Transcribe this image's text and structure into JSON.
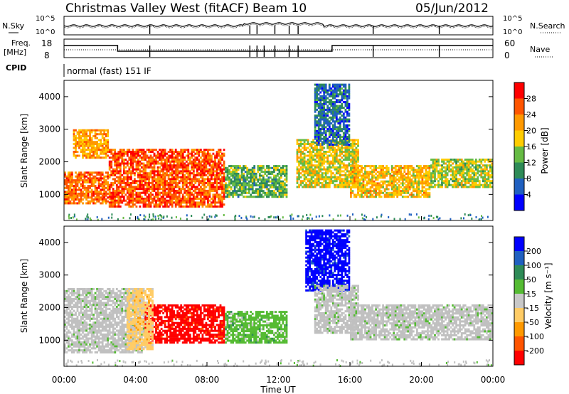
{
  "header": {
    "station": "Christmas Valley West (fitACF)",
    "beam": "Beam 10",
    "date": "05/Jun/2012"
  },
  "noise_panel": {
    "left_label": "N.Sky",
    "right_label": "N.Search",
    "left_ticks": [
      "10^5",
      "10^0"
    ],
    "right_ticks": [
      "10^5",
      "10^0"
    ]
  },
  "freq_panel": {
    "left_label_1": "Freq.",
    "left_label_2": "[MHz]",
    "right_label": "Nave",
    "left_ticks": [
      "18",
      "8"
    ],
    "right_ticks": [
      "60",
      "0"
    ]
  },
  "cpid": {
    "label": "CPID",
    "value": "normal (fast) 151 IF"
  },
  "colors": {
    "power_scale": [
      "#0000ff",
      "#2060c0",
      "#2e8b57",
      "#66bb44",
      "#ffcc00",
      "#ff9900",
      "#ff5500",
      "#ff0000"
    ],
    "velocity_scale": [
      "#ff0000",
      "#ff5500",
      "#ff9900",
      "#ffcc66",
      "#c8c8c8",
      "#55bb33",
      "#2e8b57",
      "#2060c0",
      "#0000ff"
    ],
    "ground_scatter": "#c0c0c0"
  },
  "chart_data": [
    {
      "type": "heatmap",
      "title": "Power",
      "ylabel": "Slant Range [km]",
      "yticks": [
        "1000",
        "2000",
        "3000",
        "4000"
      ],
      "ylim": [
        200,
        4500
      ],
      "colorbar_label": "Power [dB]",
      "colorbar_ticks": [
        "4",
        "8",
        "12",
        "16",
        "20",
        "24",
        "28"
      ],
      "scatter_regions": [
        {
          "t0": 0.0,
          "t1": 2.5,
          "r0": 700,
          "r1": 1700,
          "dB": 26
        },
        {
          "t0": 2.5,
          "t1": 9.0,
          "r0": 600,
          "r1": 2400,
          "dB": 28
        },
        {
          "t0": 0.5,
          "t1": 2.5,
          "r0": 2100,
          "r1": 3000,
          "dB": 22
        },
        {
          "t0": 9.0,
          "t1": 12.5,
          "r0": 900,
          "r1": 1900,
          "dB": 12
        },
        {
          "t0": 13.0,
          "t1": 16.5,
          "r0": 1200,
          "r1": 2700,
          "dB": 18
        },
        {
          "t0": 14.0,
          "t1": 16.0,
          "r0": 2500,
          "r1": 4400,
          "dB": 6
        },
        {
          "t0": 16.0,
          "t1": 20.5,
          "r0": 900,
          "r1": 1900,
          "dB": 20
        },
        {
          "t0": 20.5,
          "t1": 24.0,
          "r0": 1200,
          "r1": 2100,
          "dB": 16
        }
      ]
    },
    {
      "type": "heatmap",
      "title": "Velocity",
      "ylabel": "Slant Range [km]",
      "yticks": [
        "1000",
        "2000",
        "3000",
        "4000"
      ],
      "ylim": [
        200,
        4500
      ],
      "colorbar_label": "Velocity [m s⁻¹]",
      "colorbar_ticks": [
        "200",
        "100",
        "50",
        "15",
        "-15",
        "-50",
        "-100",
        "-200"
      ],
      "xlabel": "Time UT",
      "xticks": [
        "00:00",
        "04:00",
        "08:00",
        "12:00",
        "16:00",
        "20:00",
        "00:00"
      ],
      "xlim": [
        0,
        24
      ],
      "scatter_regions": [
        {
          "t0": 0.0,
          "t1": 4.5,
          "r0": 600,
          "r1": 2600,
          "vel": 0
        },
        {
          "t0": 4.5,
          "t1": 9.0,
          "r0": 900,
          "r1": 2100,
          "vel": -200
        },
        {
          "t0": 3.5,
          "t1": 5.0,
          "r0": 700,
          "r1": 2600,
          "vel": -50
        },
        {
          "t0": 9.0,
          "t1": 12.5,
          "r0": 900,
          "r1": 1900,
          "vel": 50
        },
        {
          "t0": 13.5,
          "t1": 16.0,
          "r0": 2500,
          "r1": 4400,
          "vel": 200
        },
        {
          "t0": 14.0,
          "t1": 16.5,
          "r0": 1200,
          "r1": 2700,
          "vel": 0
        },
        {
          "t0": 16.0,
          "t1": 24.0,
          "r0": 1000,
          "r1": 2100,
          "vel": 0
        }
      ]
    }
  ]
}
